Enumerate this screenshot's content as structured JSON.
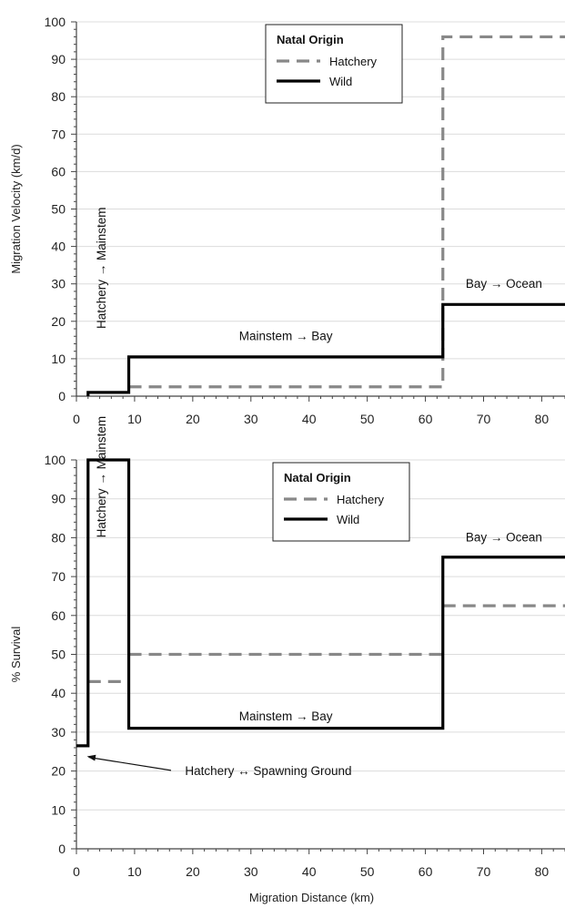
{
  "chart_data": [
    {
      "type": "line",
      "ylabel": "Migration Velocity (km/d)",
      "xlim": [
        0,
        84
      ],
      "ylim": [
        0,
        100
      ],
      "x_ticks": [
        "0",
        "10",
        "20",
        "30",
        "40",
        "50",
        "60",
        "70",
        "80"
      ],
      "y_ticks": [
        "0",
        "10",
        "20",
        "30",
        "40",
        "50",
        "60",
        "70",
        "80",
        "90",
        "100"
      ],
      "legend": {
        "title": "Natal Origin",
        "placement": "top-center"
      },
      "series": [
        {
          "name": "Hatchery",
          "style": "dashed",
          "color": "#888888",
          "x": [
            9,
            63,
            63,
            84
          ],
          "y": [
            2.5,
            2.5,
            96,
            96
          ]
        },
        {
          "name": "Wild",
          "style": "solid",
          "color": "#000000",
          "x": [
            2,
            2,
            9,
            9,
            63,
            63,
            84
          ],
          "y": [
            0,
            1,
            1,
            10.5,
            10.5,
            24.5,
            24.5
          ]
        }
      ],
      "annotations": [
        {
          "text": "Hatchery → Mainstem",
          "x": 5,
          "y": 18,
          "rotate": true
        },
        {
          "text": "Mainstem → Bay",
          "x": 36,
          "y": 15
        },
        {
          "text": "Bay → Ocean",
          "x": 73.5,
          "y": 29
        }
      ]
    },
    {
      "type": "line",
      "ylabel": "% Survival",
      "xlabel": "Migration Distance (km)",
      "xlim": [
        0,
        84
      ],
      "ylim": [
        0,
        100
      ],
      "x_ticks": [
        "0",
        "10",
        "20",
        "30",
        "40",
        "50",
        "60",
        "70",
        "80"
      ],
      "y_ticks": [
        "0",
        "10",
        "20",
        "30",
        "40",
        "50",
        "60",
        "70",
        "80",
        "90",
        "100"
      ],
      "legend": {
        "title": "Natal Origin",
        "placement": "top-center"
      },
      "series": [
        {
          "name": "Hatchery",
          "style": "dashed",
          "color": "#888888",
          "segments": [
            {
              "x": [
                2,
                9
              ],
              "y": [
                43,
                43
              ]
            },
            {
              "x": [
                9,
                63
              ],
              "y": [
                50,
                50
              ]
            },
            {
              "x": [
                63,
                84
              ],
              "y": [
                62.5,
                62.5
              ]
            }
          ]
        },
        {
          "name": "Wild",
          "style": "solid",
          "color": "#000000",
          "x": [
            0,
            2,
            2,
            9,
            9,
            63,
            63,
            84
          ],
          "y": [
            26.5,
            26.5,
            100,
            100,
            31,
            31,
            75,
            75
          ]
        }
      ],
      "annotations": [
        {
          "text": "Hatchery → Mainstem",
          "x": 5,
          "y": 80,
          "rotate": true
        },
        {
          "text": "Mainstem → Bay",
          "x": 36,
          "y": 33
        },
        {
          "text": "Bay → Ocean",
          "x": 73.5,
          "y": 79
        },
        {
          "text": "Hatchery ↔ Spawning Ground",
          "x": 33,
          "y": 19,
          "arrow_to": [
            1.5,
            24
          ]
        }
      ]
    }
  ]
}
